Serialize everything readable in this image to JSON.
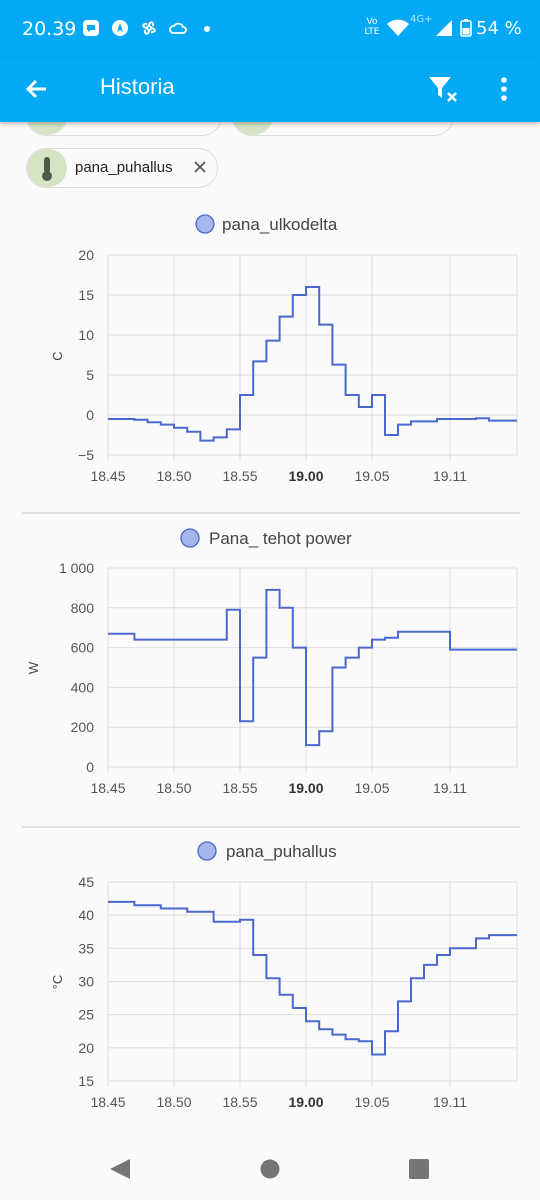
{
  "status_bar": {
    "time": "20.39",
    "network": "Vo LTE",
    "signal": "4G+",
    "battery": "54 %"
  },
  "app_bar": {
    "title": "Historia"
  },
  "chips": [
    {
      "label": "pana_puhallus"
    }
  ],
  "charts": [
    {
      "legend": "pana_ulkodelta",
      "ylabel": "C",
      "yticks": [
        "20",
        "15",
        "10",
        "5",
        "0",
        "−5"
      ],
      "xticks": [
        "18.45",
        "18.50",
        "18.55",
        "19.00",
        "19.05",
        "19.11"
      ]
    },
    {
      "legend": "Pana_ tehot power",
      "ylabel": "W",
      "yticks": [
        "1 000",
        "800",
        "600",
        "400",
        "200",
        "0"
      ],
      "xticks": [
        "18.45",
        "18.50",
        "18.55",
        "19.00",
        "19.05",
        "19.11"
      ]
    },
    {
      "legend": "pana_puhallus",
      "ylabel": "°C",
      "yticks": [
        "45",
        "40",
        "35",
        "30",
        "25",
        "20",
        "15"
      ],
      "xticks": [
        "18.45",
        "18.50",
        "18.55",
        "19.00",
        "19.05",
        "19.11"
      ]
    }
  ],
  "chart_data": [
    {
      "type": "line",
      "title": "",
      "series": [
        {
          "name": "pana_ulkodelta",
          "x": [
            "18:45",
            "18:47",
            "18:48",
            "18:49",
            "18:50",
            "18:51",
            "18:52",
            "18:53",
            "18:54",
            "18:55",
            "18:56",
            "18:57",
            "18:58",
            "18:59",
            "19:00",
            "19:01",
            "19:02",
            "19:03",
            "19:04",
            "19:05",
            "19:06",
            "19:07",
            "19:08",
            "19:10",
            "19:13",
            "19:14"
          ],
          "values": [
            -0.5,
            -0.6,
            -0.9,
            -1.2,
            -1.6,
            -2.1,
            -3.2,
            -2.8,
            -1.8,
            2.5,
            6.7,
            9.3,
            12.3,
            15,
            16,
            11.3,
            6.3,
            2.5,
            1,
            2.5,
            -2.5,
            -1.2,
            -0.8,
            -0.5,
            -0.4,
            -0.7
          ]
        }
      ],
      "xlabel": "",
      "ylabel": "C",
      "ylim": [
        -5,
        20
      ],
      "grid": true,
      "legend": "top"
    },
    {
      "type": "line",
      "title": "",
      "series": [
        {
          "name": "Pana_ tehot power",
          "x": [
            "18:45",
            "18:47",
            "18:53",
            "18:54",
            "18:55",
            "18:56",
            "18:57",
            "18:58",
            "18:59",
            "19:00",
            "19:01",
            "19:02",
            "19:03",
            "19:04",
            "19:05",
            "19:06",
            "19:07",
            "19:09",
            "19:11",
            "19:14"
          ],
          "values": [
            670,
            640,
            640,
            790,
            230,
            550,
            890,
            800,
            600,
            110,
            180,
            500,
            550,
            600,
            640,
            650,
            680,
            680,
            590,
            590
          ]
        }
      ],
      "xlabel": "",
      "ylabel": "W",
      "ylim": [
        0,
        1000
      ],
      "grid": true,
      "legend": "top"
    },
    {
      "type": "line",
      "title": "",
      "series": [
        {
          "name": "pana_puhallus",
          "x": [
            "18:45",
            "18:47",
            "18:49",
            "18:51",
            "18:53",
            "18:55",
            "18:56",
            "18:57",
            "18:58",
            "18:59",
            "19:00",
            "19:01",
            "19:02",
            "19:03",
            "19:04",
            "19:05",
            "19:06",
            "19:07",
            "19:08",
            "19:09",
            "19:10",
            "19:11",
            "19:13",
            "19:14"
          ],
          "values": [
            42,
            41.5,
            41,
            40.5,
            39,
            39.3,
            34,
            30.5,
            28,
            26,
            24,
            22.8,
            22,
            21.3,
            21,
            19,
            22.5,
            27,
            30.5,
            32.5,
            34,
            35,
            36.5,
            37
          ]
        }
      ],
      "xlabel": "",
      "ylabel": "°C",
      "ylim": [
        15,
        45
      ],
      "grid": true,
      "legend": "top"
    }
  ]
}
